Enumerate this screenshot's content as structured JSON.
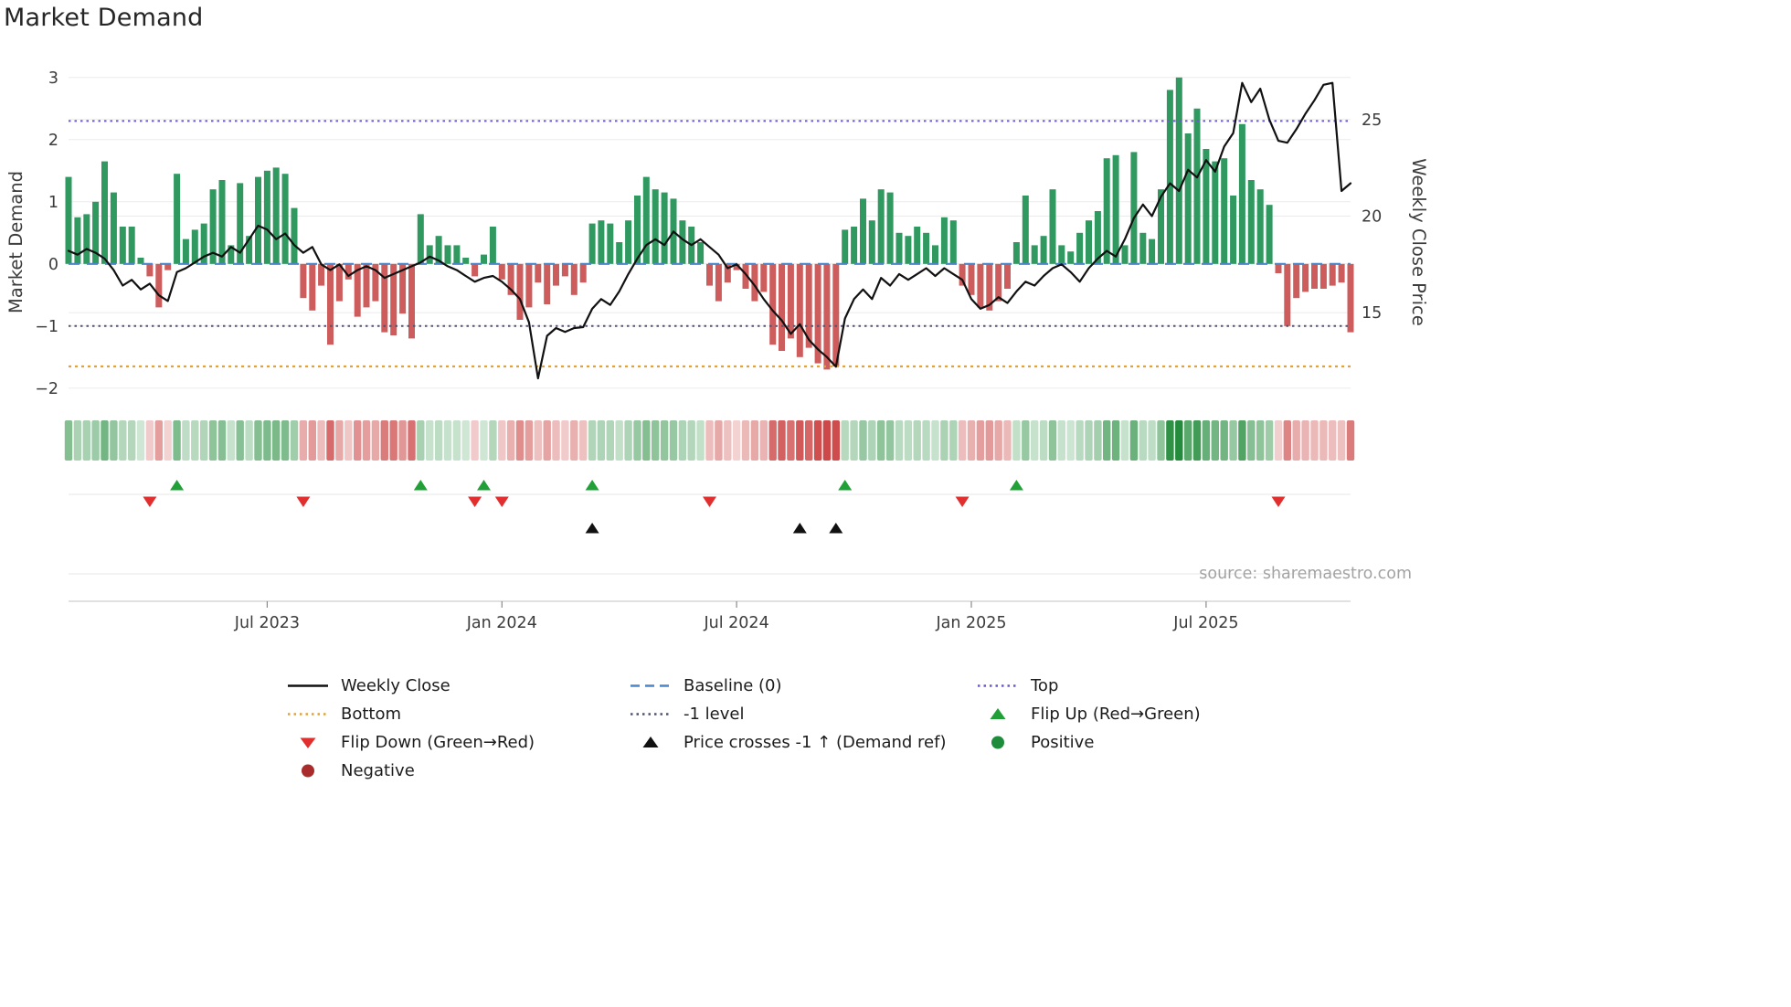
{
  "title": "Market Demand",
  "source": "source: sharemaestro.com",
  "colors": {
    "bar_positive": "#2f9960",
    "bar_negative": "#cd5c5c",
    "price_line": "#111111",
    "baseline": "#4a86c8",
    "top_line": "#6a5acd",
    "minus_one_line": "#53536e",
    "bottom_line": "#e0a23c",
    "flip_up": "#21a038",
    "flip_down": "#e12e2e",
    "price_cross": "#111111",
    "positive_dot": "#1e8c3a",
    "negative_dot": "#aa2b2b",
    "grid": "#ebebeb",
    "panel_line": "#e7e7e7",
    "axis_line": "#cfcfcf",
    "axis_text": "#3c3c3c",
    "source_text": "#a3a3a3",
    "heat_green": "35,139,59",
    "heat_red": "202,62,62"
  },
  "chart_data": {
    "type": "bar+line",
    "title": "Market Demand",
    "x_unit": "week",
    "ylabel_left": "Market Demand",
    "ylabel_right": "Weekly Close Price",
    "ylim_left": [
      -2.4,
      3.1
    ],
    "ylim_right": [
      9.8,
      27.5
    ],
    "left_ticks": [
      3,
      2,
      1,
      0,
      -1,
      -2
    ],
    "right_ticks": [
      25,
      20,
      15
    ],
    "x_ticks": [
      {
        "label": "Jul 2023",
        "index": 22
      },
      {
        "label": "Jan 2024",
        "index": 48
      },
      {
        "label": "Jul 2024",
        "index": 74
      },
      {
        "label": "Jan 2025",
        "index": 100
      },
      {
        "label": "Jul 2025",
        "index": 126
      }
    ],
    "ref_lines": {
      "baseline": 0,
      "top": 2.3,
      "minus_one": -1,
      "bottom": -1.65
    },
    "grid": true,
    "legend_position": "below",
    "heatmap_strip": "weekly demand color-coded: green positive / red negative, intensity = magnitude",
    "series": [
      {
        "name": "Market Demand",
        "type": "bar",
        "axis": "left",
        "values": [
          1.4,
          0.75,
          0.8,
          1.0,
          1.65,
          1.15,
          0.6,
          0.6,
          0.1,
          -0.2,
          -0.7,
          -0.1,
          1.45,
          0.4,
          0.55,
          0.65,
          1.2,
          1.35,
          0.3,
          1.3,
          0.45,
          1.4,
          1.5,
          1.55,
          1.45,
          0.9,
          -0.55,
          -0.75,
          -0.35,
          -1.3,
          -0.6,
          -0.25,
          -0.85,
          -0.7,
          -0.6,
          -1.1,
          -1.15,
          -0.8,
          -1.2,
          0.8,
          0.3,
          0.45,
          0.3,
          0.3,
          0.1,
          -0.2,
          0.15,
          0.6,
          -0.25,
          -0.5,
          -0.9,
          -0.7,
          -0.3,
          -0.65,
          -0.35,
          -0.2,
          -0.5,
          -0.3,
          0.65,
          0.7,
          0.65,
          0.35,
          0.7,
          1.1,
          1.4,
          1.2,
          1.15,
          1.05,
          0.7,
          0.6,
          0.35,
          -0.35,
          -0.6,
          -0.3,
          -0.1,
          -0.4,
          -0.6,
          -0.45,
          -1.3,
          -1.4,
          -1.2,
          -1.5,
          -1.35,
          -1.6,
          -1.7,
          -1.65,
          0.55,
          0.6,
          1.05,
          0.7,
          1.2,
          1.15,
          0.5,
          0.45,
          0.6,
          0.5,
          0.3,
          0.75,
          0.7,
          -0.35,
          -0.5,
          -0.7,
          -0.75,
          -0.6,
          -0.4,
          0.35,
          1.1,
          0.3,
          0.45,
          1.2,
          0.3,
          0.2,
          0.5,
          0.7,
          0.85,
          1.7,
          1.75,
          0.3,
          1.8,
          0.5,
          0.4,
          1.2,
          2.8,
          3.0,
          2.1,
          2.5,
          1.85,
          1.65,
          1.7,
          1.1,
          2.25,
          1.35,
          1.2,
          0.95,
          -0.15,
          -1.0,
          -0.55,
          -0.45,
          -0.4,
          -0.4,
          -0.35,
          -0.3,
          -1.1
        ]
      },
      {
        "name": "Weekly Close",
        "type": "line",
        "axis": "right",
        "values": [
          18.2,
          18.0,
          18.3,
          18.1,
          17.8,
          17.2,
          16.4,
          16.7,
          16.2,
          16.5,
          15.9,
          15.6,
          17.1,
          17.3,
          17.6,
          17.9,
          18.1,
          17.9,
          18.4,
          18.1,
          18.8,
          19.5,
          19.3,
          18.8,
          19.1,
          18.5,
          18.1,
          18.4,
          17.5,
          17.2,
          17.5,
          16.9,
          17.2,
          17.4,
          17.2,
          16.8,
          17.0,
          17.2,
          17.4,
          17.6,
          17.9,
          17.7,
          17.4,
          17.2,
          16.9,
          16.6,
          16.8,
          16.9,
          16.6,
          16.2,
          15.7,
          14.5,
          11.6,
          13.8,
          14.2,
          14.0,
          14.2,
          14.25,
          15.2,
          15.7,
          15.4,
          16.1,
          17.0,
          17.8,
          18.5,
          18.8,
          18.5,
          19.2,
          18.8,
          18.5,
          18.8,
          18.4,
          18.0,
          17.3,
          17.5,
          17.0,
          16.4,
          15.7,
          15.1,
          14.6,
          13.9,
          14.4,
          13.6,
          13.1,
          12.7,
          12.2,
          14.7,
          15.7,
          16.2,
          15.7,
          16.8,
          16.4,
          17.0,
          16.7,
          17.0,
          17.3,
          16.9,
          17.3,
          17.0,
          16.7,
          15.7,
          15.2,
          15.4,
          15.8,
          15.5,
          16.1,
          16.6,
          16.4,
          16.9,
          17.3,
          17.5,
          17.1,
          16.6,
          17.3,
          17.8,
          18.2,
          17.9,
          18.8,
          19.9,
          20.6,
          20.0,
          21.0,
          21.7,
          21.3,
          22.4,
          22.0,
          22.9,
          22.3,
          23.6,
          24.3,
          26.9,
          25.9,
          26.6,
          25.0,
          23.9,
          23.8,
          24.5,
          25.3,
          26.0,
          26.8,
          26.9,
          21.3,
          21.7
        ]
      }
    ],
    "markers": {
      "flip_up_indices": [
        12,
        39,
        46,
        58,
        86,
        105
      ],
      "flip_down_indices": [
        9,
        26,
        45,
        48,
        71,
        99,
        134
      ],
      "price_cross_indices": [
        58,
        81,
        85
      ]
    }
  },
  "legend": {
    "items": [
      {
        "label": "Weekly Close",
        "symbol": "line",
        "color": "#111111"
      },
      {
        "label": "Baseline (0)",
        "symbol": "dashed-line",
        "color": "#4a86c8"
      },
      {
        "label": "Top",
        "symbol": "dotted-line",
        "color": "#6a5acd"
      },
      {
        "label": "Bottom",
        "symbol": "dotted-line",
        "color": "#e0a23c"
      },
      {
        "label": "-1 level",
        "symbol": "dotted-line",
        "color": "#53536e"
      },
      {
        "label": "Flip Up (Red→Green)",
        "symbol": "triangle-up",
        "color": "#21a038"
      },
      {
        "label": "Flip Down (Green→Red)",
        "symbol": "triangle-down",
        "color": "#e12e2e"
      },
      {
        "label": "Price crosses -1 ↑ (Demand ref)",
        "symbol": "triangle-up",
        "color": "#111111"
      },
      {
        "label": "Positive",
        "symbol": "circle",
        "color": "#1e8c3a"
      },
      {
        "label": "Negative",
        "symbol": "circle",
        "color": "#aa2b2b"
      }
    ]
  }
}
